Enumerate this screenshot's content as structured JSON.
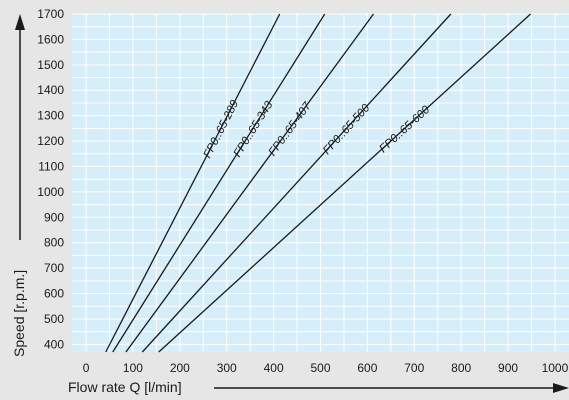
{
  "chart_data": {
    "type": "line",
    "xlabel": "Flow rate Q [l/min]",
    "ylabel": "Speed [r.p.m.]",
    "xlim": [
      -30,
      1030
    ],
    "ylim": [
      370,
      1700
    ],
    "x_ticks": [
      "0",
      "100",
      "200",
      "300",
      "400",
      "500",
      "600",
      "700",
      "800",
      "900",
      "1000"
    ],
    "y_ticks": [
      "400",
      "500",
      "600",
      "700",
      "800",
      "900",
      "1000",
      "1100",
      "1200",
      "1300",
      "1400",
      "1500",
      "1600",
      "1700"
    ],
    "grid": true,
    "background_color": "#d6eef9",
    "grid_color": "#ffffff",
    "line_color": "#1a1a1a",
    "series": [
      {
        "name": "FP0..65-289",
        "x": [
          42,
          413
        ],
        "y": [
          370,
          1700
        ]
      },
      {
        "name": "FP0..65-343",
        "x": [
          57,
          509
        ],
        "y": [
          370,
          1700
        ]
      },
      {
        "name": "FP0..65-407",
        "x": [
          85,
          613
        ],
        "y": [
          370,
          1700
        ]
      },
      {
        "name": "FP0..65-500",
        "x": [
          120,
          778
        ],
        "y": [
          370,
          1700
        ]
      },
      {
        "name": "FP0..65-600",
        "x": [
          155,
          948
        ],
        "y": [
          370,
          1700
        ]
      }
    ]
  }
}
